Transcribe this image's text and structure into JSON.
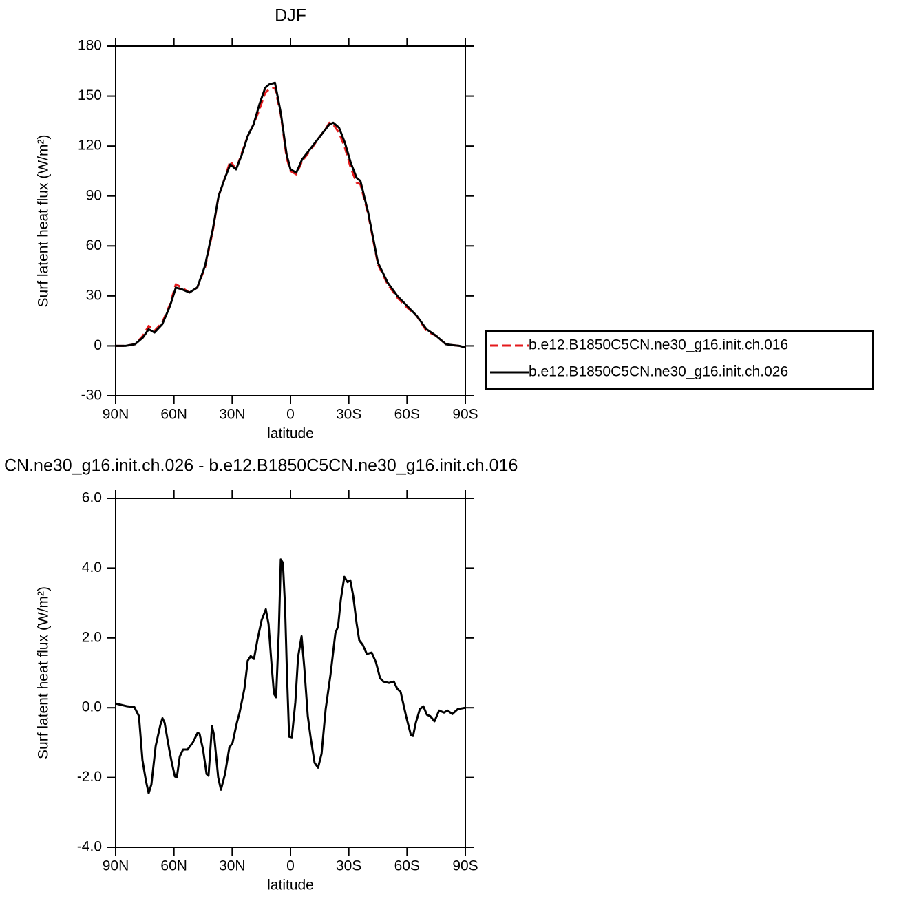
{
  "chart_data": [
    {
      "type": "line",
      "title": "DJF",
      "xlabel": "latitude",
      "ylabel": "Surf latent heat flux (W/m²)",
      "x": [
        90,
        85,
        80,
        76,
        73,
        70,
        66,
        62,
        59,
        56,
        52,
        48,
        44,
        40,
        37,
        34,
        31,
        28,
        25,
        22,
        19,
        16,
        13,
        11,
        8,
        5,
        2,
        0,
        -3,
        -6,
        -10,
        -14,
        -18,
        -20,
        -22,
        -25,
        -28,
        -31,
        -34,
        -36,
        -40,
        -45,
        -50,
        -55,
        -60,
        -65,
        -70,
        -75,
        -80,
        -83,
        -87,
        -90
      ],
      "series": [
        {
          "name": "b.e12.B1850C5CN.ne30_g16.init.ch.016",
          "color": "#e41a1c",
          "linestyle": "dashed",
          "values": [
            0,
            0,
            1,
            6,
            12,
            9,
            14,
            25,
            37,
            35,
            32,
            35,
            47,
            69,
            90,
            100,
            111,
            106,
            116,
            126,
            133,
            142,
            152,
            154,
            155,
            139,
            113,
            105,
            103,
            111,
            117,
            124,
            130,
            134,
            133,
            128,
            119,
            107,
            98,
            97,
            79,
            49,
            37,
            29,
            23,
            18,
            9,
            6,
            1,
            0.5,
            0,
            -1
          ]
        },
        {
          "name": "b.e12.B1850C5CN.ne30_g16.init.ch.026",
          "color": "#000000",
          "linestyle": "solid",
          "values": [
            0,
            0,
            1,
            5,
            10,
            8,
            13,
            24,
            35,
            34,
            32,
            35,
            48,
            70,
            90,
            100,
            109,
            106,
            115,
            126,
            133,
            145,
            155,
            157,
            158,
            140,
            115,
            106,
            104,
            112,
            118,
            124,
            130,
            133,
            134,
            131,
            122,
            110,
            101,
            99,
            80,
            50,
            38,
            30,
            24,
            18,
            10,
            6,
            1,
            0.5,
            0,
            -1
          ]
        }
      ],
      "xlim": [
        90,
        -90
      ],
      "xticks": [
        {
          "value": 90,
          "label": "90N"
        },
        {
          "value": 60,
          "label": "60N"
        },
        {
          "value": 30,
          "label": "30N"
        },
        0,
        {
          "value": -30,
          "label": "30S"
        },
        {
          "value": -60,
          "label": "60S"
        },
        {
          "value": -90,
          "label": "90S"
        }
      ],
      "ylim": [
        -30,
        180
      ],
      "yticks": [
        -30,
        0,
        30,
        60,
        90,
        120,
        150,
        180
      ],
      "legend": "right"
    },
    {
      "type": "line",
      "title": "CN.ne30_g16.init.ch.026  -  b.e12.B1850C5CN.ne30_g16.init.ch.016",
      "xlabel": "latitude",
      "ylabel": "Surf latent heat flux (W/m²)",
      "x": [
        90,
        84,
        80.4,
        78,
        76.2,
        74.4,
        73,
        71.6,
        69.4,
        67,
        65.9,
        64.8,
        62.4,
        61,
        59.5,
        58.5,
        57,
        55.3,
        53,
        50.3,
        47.8,
        46.8,
        45,
        43.2,
        42.2,
        40.4,
        39.3,
        37.2,
        35.8,
        33.7,
        31.5,
        29.8,
        27.6,
        26.2,
        23.7,
        22,
        20.5,
        18.8,
        17,
        14.9,
        12.7,
        11.3,
        9.9,
        8.5,
        7.4,
        6,
        5,
        3.9,
        2.8,
        1.8,
        0.7,
        -0.7,
        -2.5,
        -3.9,
        -5.7,
        -7.1,
        -8.9,
        -10.3,
        -12.4,
        -14.2,
        -16,
        -18.1,
        -20.6,
        -23.1,
        -24.5,
        -25.9,
        -27.7,
        -29.4,
        -30.8,
        -32.3,
        -34,
        -35.4,
        -37.2,
        -39.3,
        -41.8,
        -44,
        -46.1,
        -47.8,
        -50.7,
        -53.2,
        -54.9,
        -56.7,
        -59.5,
        -62,
        -63.1,
        -64.5,
        -66.6,
        -68.4,
        -70.2,
        -71.9,
        -74.1,
        -76.5,
        -79,
        -80.8,
        -83.3,
        -86.1,
        -90
      ],
      "series": [
        {
          "name": null,
          "color": "#000000",
          "linestyle": "solid",
          "values": [
            0.12,
            0.04,
            0.02,
            -0.24,
            -1.5,
            -2.1,
            -2.45,
            -2.2,
            -1.1,
            -0.5,
            -0.3,
            -0.43,
            -1.2,
            -1.6,
            -1.97,
            -2.0,
            -1.4,
            -1.2,
            -1.2,
            -1,
            -0.72,
            -0.75,
            -1.2,
            -1.9,
            -1.95,
            -0.53,
            -0.8,
            -2.0,
            -2.35,
            -1.9,
            -1.15,
            -1.0,
            -0.43,
            -0.14,
            0.55,
            1.35,
            1.48,
            1.4,
            1.95,
            2.5,
            2.82,
            2.4,
            1.35,
            0.4,
            0.3,
            2.2,
            4.25,
            4.15,
            2.9,
            0.95,
            -0.83,
            -0.85,
            0.16,
            1.45,
            2.05,
            1.15,
            -0.24,
            -0.83,
            -1.58,
            -1.72,
            -1.32,
            -0.04,
            0.95,
            2.13,
            2.33,
            3.1,
            3.75,
            3.6,
            3.65,
            3.2,
            2.43,
            1.93,
            1.8,
            1.54,
            1.58,
            1.3,
            0.85,
            0.75,
            0.71,
            0.75,
            0.55,
            0.45,
            -0.24,
            -0.79,
            -0.81,
            -0.43,
            -0.04,
            0.04,
            -0.2,
            -0.24,
            -0.39,
            -0.08,
            -0.14,
            -0.08,
            -0.18,
            -0.04,
            0
          ]
        }
      ],
      "xlim": [
        90,
        -90
      ],
      "xticks": [
        {
          "value": 90,
          "label": "90N"
        },
        {
          "value": 60,
          "label": "60N"
        },
        {
          "value": 30,
          "label": "30N"
        },
        0,
        {
          "value": -30,
          "label": "30S"
        },
        {
          "value": -60,
          "label": "60S"
        },
        {
          "value": -90,
          "label": "90S"
        }
      ],
      "ylim": [
        -4,
        6
      ],
      "yticks": [
        {
          "value": -4,
          "label": "-4.0"
        },
        {
          "value": -2,
          "label": "-2.0"
        },
        {
          "value": 0,
          "label": "0.0"
        },
        {
          "value": 2,
          "label": "2.0"
        },
        {
          "value": 4,
          "label": "4.0"
        },
        {
          "value": 6,
          "label": "6.0"
        }
      ]
    }
  ]
}
